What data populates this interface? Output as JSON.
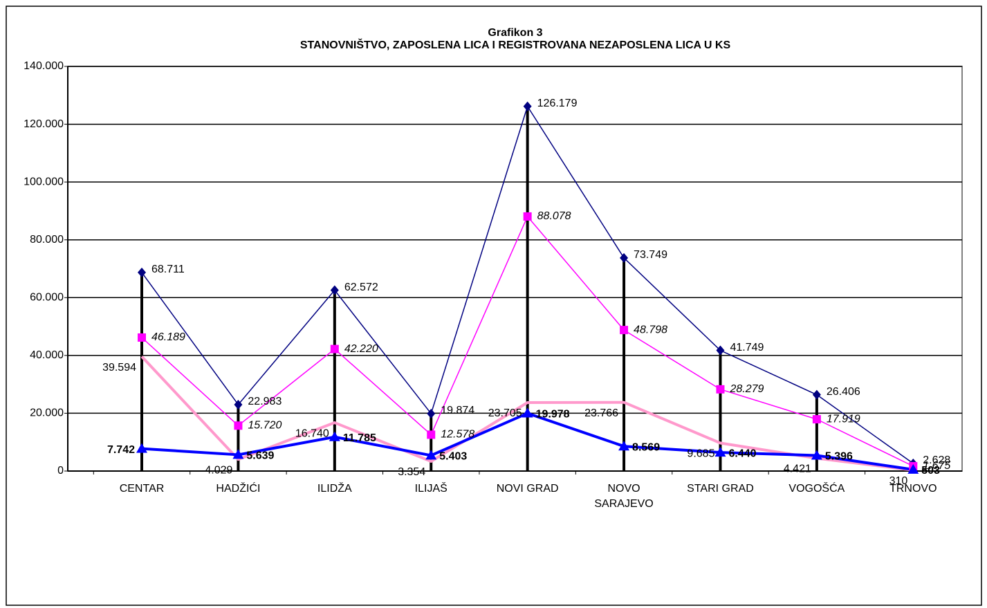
{
  "chart_data": {
    "type": "line",
    "title": "Grafikon 3",
    "subtitle": "STANOVNIŠTVO, ZAPOSLENA LICA I REGISTROVANA NEZAPOSLENA LICA U KS",
    "categories": [
      "CENTAR",
      "HADŽIĆI",
      "ILIDŽA",
      "ILIJAŠ",
      "NOVI GRAD",
      "NOVO SARAJEVO",
      "STARI GRAD",
      "VOGOŠĆA",
      "TRNOVO"
    ],
    "series": [
      {
        "color": "#000080",
        "marker": "diamond",
        "values": [
          68711,
          22983,
          62572,
          19874,
          126179,
          73749,
          41749,
          26406,
          2628
        ],
        "value_labels": [
          "68.711",
          "22.983",
          "62.572",
          "19.874",
          "126.179",
          "73.749",
          "41.749",
          "26.406",
          "2.628"
        ]
      },
      {
        "color": "#ff00ff",
        "marker": "square",
        "values": [
          46189,
          15720,
          42220,
          12578,
          88078,
          48798,
          28279,
          17919,
          1675
        ],
        "value_labels": [
          "46.189",
          "15.720",
          "42.220",
          "12.578",
          "88.078",
          "48.798",
          "28.279",
          "17.919",
          "1.675"
        ]
      },
      {
        "color": "#ff99cc",
        "marker": "none",
        "values": [
          39594,
          4029,
          16740,
          3354,
          23705,
          23766,
          9685,
          4421,
          310
        ],
        "value_labels": [
          "39.594",
          "4.029",
          "16.740",
          "3.354",
          "23.705",
          "23.766",
          "9.685",
          "4.421",
          "310"
        ]
      },
      {
        "color": "#0000ff",
        "marker": "triangle",
        "values": [
          7742,
          5639,
          11785,
          5403,
          19978,
          8569,
          6440,
          5396,
          503
        ],
        "value_labels": [
          "7.742",
          "5.639",
          "11.785",
          "5.403",
          "19.978",
          "8.569",
          "6.440",
          "5.396",
          "503"
        ]
      }
    ],
    "ylim": [
      0,
      140000
    ],
    "yticks": [
      0,
      {
        "value": 20000,
        "label": "20.000"
      },
      {
        "value": 40000,
        "label": "40.000"
      },
      {
        "value": 60000,
        "label": "60.000"
      },
      {
        "value": 80000,
        "label": "80.000"
      },
      {
        "value": 100000,
        "label": "100.000"
      },
      {
        "value": 120000,
        "label": "120.000"
      },
      {
        "value": 140000,
        "label": "140.000"
      }
    ],
    "grid": true
  }
}
